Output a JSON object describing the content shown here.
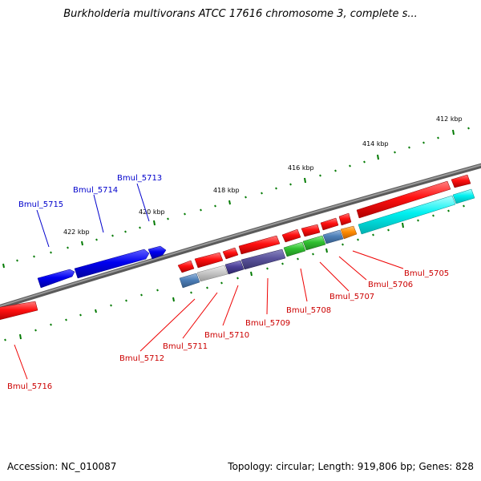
{
  "title": "Burkholderia multivorans ATCC 17616 chromosome 3, complete s...",
  "footer": {
    "accession": "Accession: NC_010087",
    "topology": "Topology: circular; Length: 919,806 bp; Genes: 828"
  },
  "colors": {
    "forward_strand": "#0000e6",
    "reverse_strand": "#ee0000",
    "backbone": "#808080",
    "tick": "#007a00"
  },
  "kbp_labels": [
    "412 kbp",
    "414 kbp",
    "416 kbp",
    "418 kbp",
    "420 kbp",
    "422 kbp"
  ],
  "gene_labels": {
    "forward": [
      "Bmul_5713",
      "Bmul_5714",
      "Bmul_5715"
    ],
    "reverse": [
      "Bmul_5705",
      "Bmul_5706",
      "Bmul_5707",
      "Bmul_5708",
      "Bmul_5709",
      "Bmul_5710",
      "Bmul_5711",
      "Bmul_5712",
      "Bmul_5716"
    ]
  }
}
